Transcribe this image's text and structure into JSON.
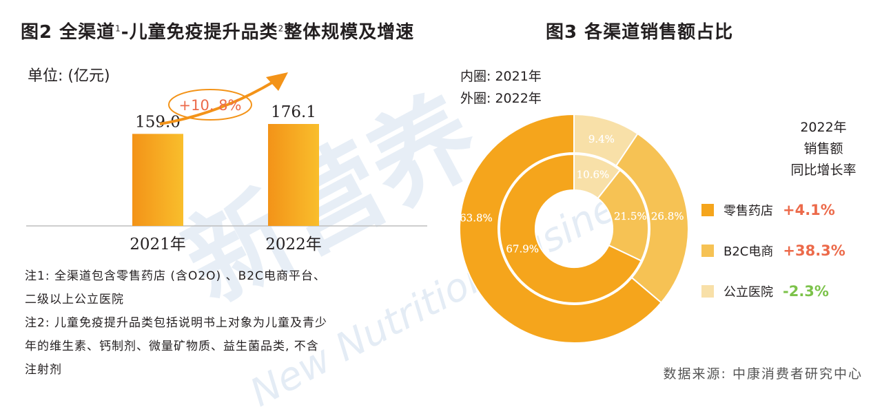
{
  "fig2": {
    "title_a": "图2  全渠道",
    "sup1": "1",
    "title_b": "-儿童免疫提升品类",
    "sup2": "2",
    "title_c": "整体规模及增速",
    "unit": "单位: (亿元)",
    "growth_label": "+10. 8%"
  },
  "fig3": {
    "title": "图3  各渠道销售额占比",
    "inner_label": "内圈: 2021年",
    "outer_label": "外圈: 2022年",
    "legend_title_1": "2022年",
    "legend_title_2": "销售额",
    "legend_title_3": "同比增长率"
  },
  "notes": {
    "n1_line1": "注1: 全渠道包含零售药店 (含O2O) 、B2C电商平台、",
    "n1_line2": "二级以上公立医院",
    "n2_line1": "注2: 儿童免疫提升品类包括说明书上对象为儿童及青少",
    "n2_line2": "年的维生素、钙制剂、微量矿物质、益生菌品类, 不含",
    "n2_line3": "注射剂"
  },
  "source": "数据来源: 中康消费者研究中心",
  "watermark": {
    "main": "新营养",
    "sub": "New Nutrition Business"
  },
  "colors": {
    "retail": "#f5a51c",
    "b2c": "#f6c254",
    "hospital": "#f8e0a8",
    "bar_dark": "#f39318",
    "bar_light": "#f8ba28",
    "red": "#ec6a4a",
    "green": "#7cc24a"
  },
  "chart_data": [
    {
      "type": "bar",
      "categories": [
        "2021年",
        "2022年"
      ],
      "values": [
        159.0,
        176.1
      ],
      "value_labels": [
        "159.0",
        "176.1"
      ],
      "ylim": [
        0,
        200
      ]
    },
    {
      "type": "pie",
      "donut": true,
      "categories": [
        "零售药店",
        "B2C电商",
        "公立医院"
      ],
      "series": [
        {
          "name": "2021年",
          "ring": "inner",
          "values": [
            67.9,
            21.5,
            10.6
          ],
          "labels": [
            "67.9%",
            "21.5%",
            "10.6%"
          ]
        },
        {
          "name": "2022年",
          "ring": "outer",
          "values": [
            63.8,
            26.8,
            9.4
          ],
          "labels": [
            "63.8%",
            "26.8%",
            "9.4%"
          ]
        }
      ],
      "growth": [
        {
          "label": "零售药店",
          "value": "+4.1%",
          "color": "red"
        },
        {
          "label": "B2C电商",
          "value": "+38.3%",
          "color": "red"
        },
        {
          "label": "公立医院",
          "value": "-2.3%",
          "color": "green"
        }
      ]
    }
  ]
}
